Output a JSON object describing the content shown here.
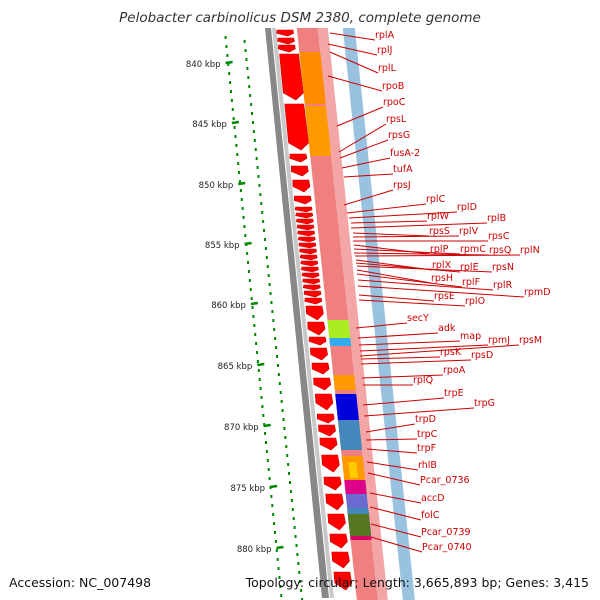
{
  "title": "Pelobacter carbinolicus DSM 2380, complete genome",
  "accession": "Accession: NC_007498",
  "topology": "Topology: circular; Length: 3,665,893 bp; Genes: 3,415",
  "colors": {
    "label": "#cc0000",
    "tick": "#008800",
    "gene": "#ff0000",
    "track_base": "#f08080",
    "backbone": "#888888"
  },
  "scale_ticks": [
    "840 kbp",
    "845 kbp",
    "850 kbp",
    "855 kbp",
    "860 kbp",
    "865 kbp",
    "870 kbp",
    "875 kbp",
    "880 kbp"
  ],
  "gene_labels": [
    "rplA",
    "rplJ",
    "rplL",
    "rpoB",
    "rpoC",
    "rpsL",
    "rpsG",
    "fusA-2",
    "tufA",
    "rpsJ",
    "rplC",
    "rplD",
    "rplW",
    "rplB",
    "rpsS",
    "rplV",
    "rpsC",
    "rplP",
    "rpmC",
    "rpsQ",
    "rplN",
    "rplX",
    "rplE",
    "rpsN",
    "rpsH",
    "rplF",
    "rplR",
    "rpmD",
    "rpsE",
    "rplO",
    "secY",
    "adk",
    "map",
    "rpmJ",
    "rpsM",
    "rpsK",
    "rpsD",
    "rpoA",
    "rplQ",
    "trpE",
    "trpG",
    "trpD",
    "trpC",
    "trpF",
    "rhlB",
    "Pcar_0736",
    "accD",
    "folC",
    "Pcar_0739",
    "Pcar_0740"
  ]
}
